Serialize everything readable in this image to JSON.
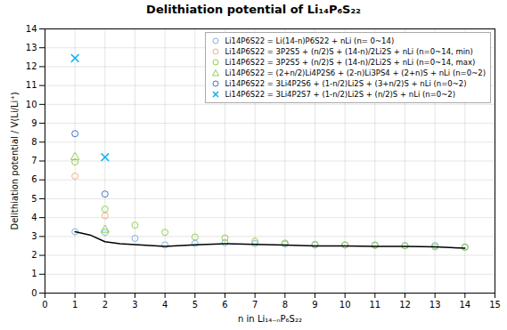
{
  "chart_data": {
    "type": "scatter",
    "title": "Delithiation potential of Li₁₄P₆S₂₂",
    "xlabel": "n in Li₁₄₋ₙP₆S₂₂",
    "ylabel": "Delithiation potential / V(Li/Li⁺)",
    "xlim": [
      0,
      15
    ],
    "ylim": [
      0,
      14
    ],
    "xticks": [
      0,
      1,
      2,
      3,
      4,
      5,
      6,
      7,
      8,
      9,
      10,
      11,
      12,
      13,
      14,
      15
    ],
    "yticks": [
      0,
      1,
      2,
      3,
      4,
      5,
      6,
      7,
      8,
      9,
      10,
      11,
      12,
      13,
      14
    ],
    "grid": true,
    "legend": "upper right",
    "series": [
      {
        "name": "Li14P6S22 = Li(14-n)P6S22 + nLi (n= 0~14)",
        "color": "#7eb4e2",
        "marker": "circle",
        "x": [
          1,
          2,
          3,
          4,
          5,
          6,
          7,
          8,
          9,
          10,
          11,
          12,
          13,
          14
        ],
        "values": [
          3.25,
          3.22,
          2.9,
          2.55,
          2.63,
          2.67,
          2.63,
          2.6,
          2.55,
          2.55,
          2.55,
          2.52,
          2.52,
          2.45
        ]
      },
      {
        "name": "Li14P6S22 = 3P2S5 + (n/2)S + (14-n)/2Li2S + nLi (n=0~14, min)",
        "color": "#f4b183",
        "marker": "circle",
        "x": [
          1,
          2
        ],
        "values": [
          6.2,
          4.1
        ]
      },
      {
        "name": "Li14P6S22 = 3P2S5 + (n/2)S + (14-n)/2Li2S + nLi (n=0~14, max)",
        "color": "#92d050",
        "marker": "circle",
        "x": [
          1,
          2,
          3,
          4,
          5,
          6,
          7,
          8,
          9,
          10,
          11,
          12,
          13,
          14
        ],
        "values": [
          6.95,
          4.45,
          3.6,
          3.22,
          2.97,
          2.92,
          2.75,
          2.65,
          2.58,
          2.55,
          2.52,
          2.5,
          2.45,
          2.42
        ]
      },
      {
        "name": "Li14P6S22 = (2+n/2)Li4P2S6 + (2-n)Li3PS4 + (2+n)S + nLi (n=0~2)",
        "color": "#92d050",
        "marker": "triangle",
        "x": [
          1,
          2
        ],
        "values": [
          7.2,
          3.35
        ]
      },
      {
        "name": "Li14P6S22 = 3Li4P2S6 + (1-n/2)Li2S + (3+n/2)S + nLi (n=0~2)",
        "color": "#4472c4",
        "marker": "circle",
        "x": [
          1,
          2
        ],
        "values": [
          8.45,
          5.25
        ]
      },
      {
        "name": "Li14P6S22 = 3Li4P2S7 + (1-n/2)Li2S + (n/2)S + nLi  (n=0~2)",
        "color": "#00b0f0",
        "marker": "x",
        "x": [
          1,
          2
        ],
        "values": [
          12.45,
          7.2
        ]
      },
      {
        "type": "line",
        "color": "#000000",
        "x": [
          1.0,
          1.5,
          2.0,
          2.5,
          3.0,
          3.5,
          4.0,
          5.0,
          6.0,
          7.0,
          8.0,
          9.0,
          10.0,
          11.0,
          12.0,
          13.0,
          14.0
        ],
        "values": [
          3.25,
          3.08,
          2.72,
          2.62,
          2.57,
          2.52,
          2.48,
          2.56,
          2.62,
          2.58,
          2.55,
          2.5,
          2.5,
          2.48,
          2.47,
          2.45,
          2.38
        ]
      }
    ]
  }
}
